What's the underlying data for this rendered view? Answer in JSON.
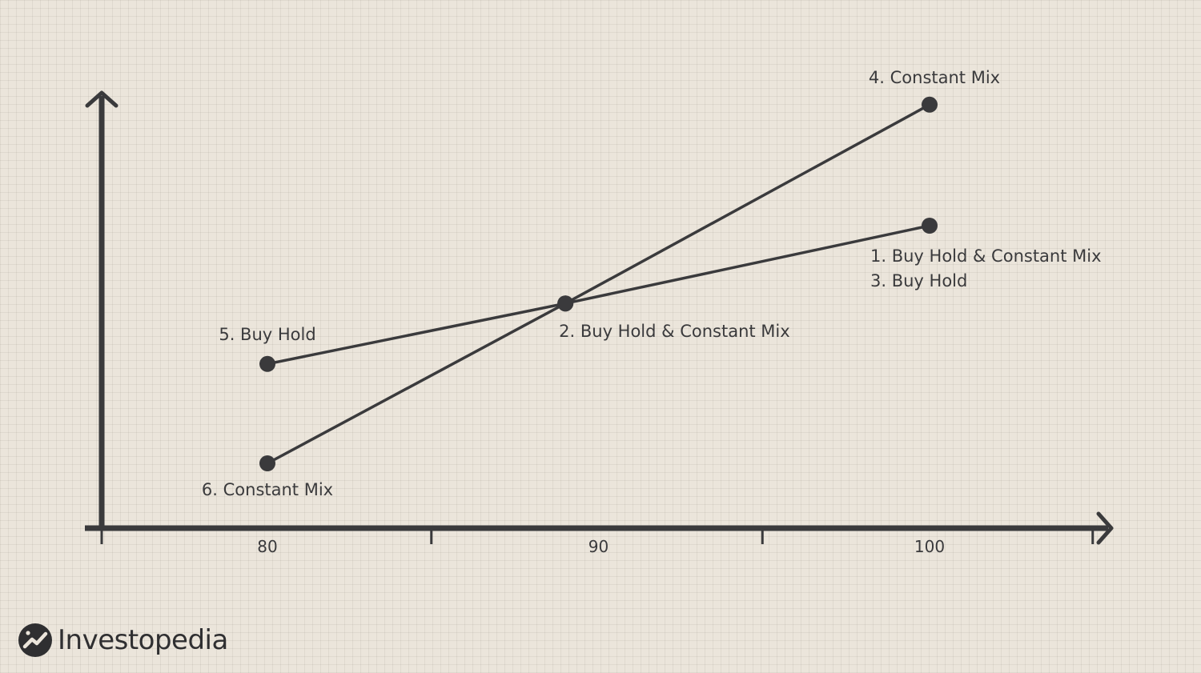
{
  "chart_data": {
    "type": "line",
    "title": "",
    "xlabel": "",
    "ylabel": "",
    "x_ticks": [
      {
        "value": 80,
        "label": "80"
      },
      {
        "value": 85,
        "label": ""
      },
      {
        "value": 90,
        "label": "90"
      },
      {
        "value": 95,
        "label": ""
      },
      {
        "value": 100,
        "label": "100"
      },
      {
        "value": 105,
        "label": ""
      }
    ],
    "xlim": [
      75,
      107.5
    ],
    "ylim": [
      0,
      100
    ],
    "grid": false,
    "series": [
      {
        "points": [
          {
            "x": 80,
            "y": 38,
            "label": "5. Buy Hold"
          },
          {
            "x": 89,
            "y": 52,
            "label": "2. Buy Hold & Constant Mix"
          },
          {
            "x": 100,
            "y": 70,
            "label": "1. Buy Hold & Constant Mix",
            "label2": "3. Buy Hold"
          }
        ]
      },
      {
        "points": [
          {
            "x": 80,
            "y": 15,
            "label": "6. Constant Mix"
          },
          {
            "x": 89,
            "y": 52,
            "label": ""
          },
          {
            "x": 100,
            "y": 98,
            "label": "4. Constant Mix"
          }
        ]
      }
    ]
  },
  "colors": {
    "background": "#ebe5db",
    "ink": "#3a3a3c"
  },
  "logo": {
    "text": "Investopedia",
    "icon": "investopedia-logo-icon"
  }
}
